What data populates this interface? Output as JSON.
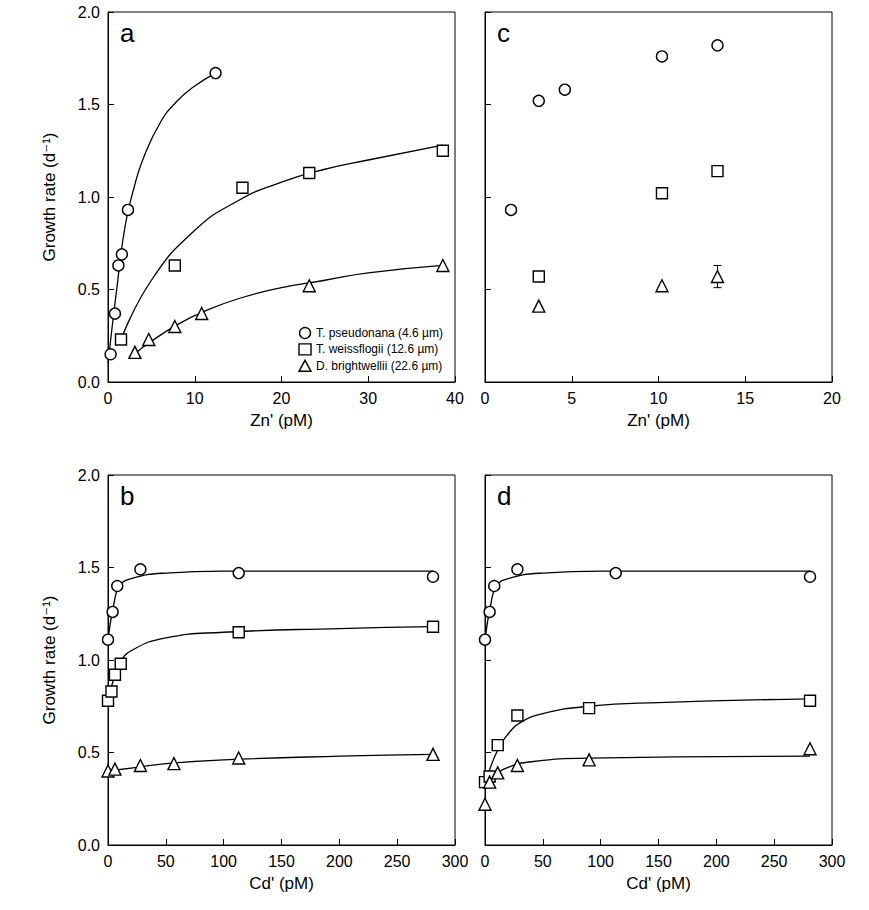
{
  "chart_data": [
    {
      "type": "scatter",
      "title": "a",
      "xlabel": "Zn' (pM)",
      "ylabel": "Growth rate (d⁻¹)",
      "xlim": [
        0,
        40
      ],
      "xticks": [
        0,
        10,
        20,
        30,
        40
      ],
      "ylim": [
        0,
        2
      ],
      "yticks": [
        {
          "value": 0,
          "label": "0.0"
        },
        0.5,
        {
          "value": 1,
          "label": "1.0"
        },
        1.5,
        {
          "value": 2,
          "label": "2.0"
        }
      ],
      "grid": false,
      "legend": "lower right",
      "tick_labels": true,
      "series": [
        {
          "name": "T. pseudonana (4.6 µm)",
          "marker": "circle",
          "color": "#000000",
          "x": [
            0.3,
            0.8,
            1.2,
            1.6,
            2.3,
            12.4
          ],
          "values": [
            0.15,
            0.37,
            0.63,
            0.69,
            0.93,
            1.67
          ],
          "fit": {
            "x": [
              0,
              1,
              2,
              3,
              4,
              6,
              8,
              10,
              12.4
            ],
            "values": [
              0.1,
              0.5,
              0.85,
              1.05,
              1.2,
              1.4,
              1.52,
              1.6,
              1.67
            ]
          }
        },
        {
          "name": "T. weissflogii (12.6 µm)",
          "marker": "square",
          "color": "#000000",
          "x": [
            1.5,
            7.7,
            15.5,
            23.2,
            38.6
          ],
          "values": [
            0.23,
            0.63,
            1.05,
            1.13,
            1.25
          ],
          "fit": {
            "x": [
              1.5,
              5,
              10,
              15,
              20,
              25,
              30,
              38.6
            ],
            "values": [
              0.23,
              0.55,
              0.82,
              0.98,
              1.08,
              1.15,
              1.2,
              1.28
            ]
          }
        },
        {
          "name": "D. brightwellii (22.6 µm)",
          "marker": "triangle",
          "color": "#000000",
          "x": [
            3.1,
            4.7,
            7.7,
            10.8,
            23.2,
            38.6
          ],
          "values": [
            0.16,
            0.23,
            0.3,
            0.37,
            0.52,
            0.63
          ],
          "fit": {
            "x": [
              3,
              5,
              8,
              11,
              15,
              20,
              25,
              30,
              38.6
            ],
            "values": [
              0.15,
              0.22,
              0.31,
              0.38,
              0.45,
              0.51,
              0.55,
              0.59,
              0.63
            ]
          }
        }
      ]
    },
    {
      "type": "scatter",
      "title": "c",
      "xlabel": "Zn' (pM)",
      "xlim": [
        0,
        20
      ],
      "xticks": [
        0,
        5,
        10,
        15,
        20
      ],
      "ylim": [
        0,
        2
      ],
      "yticks": [
        {
          "value": 0,
          "label": "0.0"
        },
        0.5,
        {
          "value": 1,
          "label": "1.0"
        },
        1.5,
        {
          "value": 2,
          "label": "2.0"
        }
      ],
      "grid": false,
      "tick_labels": "x",
      "series": [
        {
          "marker": "circle",
          "color": "#000000",
          "x": [
            1.5,
            3.1,
            4.6,
            10.2,
            13.4
          ],
          "values": [
            0.93,
            1.52,
            1.58,
            1.76,
            1.82
          ]
        },
        {
          "marker": "square",
          "color": "#000000",
          "x": [
            3.1,
            10.2,
            13.4
          ],
          "values": [
            0.57,
            1.02,
            1.14
          ]
        },
        {
          "marker": "triangle",
          "color": "#000000",
          "x": [
            3.1,
            10.2,
            13.4
          ],
          "values": [
            0.41,
            0.52,
            0.57
          ],
          "errors": [
            null,
            null,
            0.06
          ]
        }
      ]
    },
    {
      "type": "scatter",
      "title": "b",
      "xlabel": "Cd' (pM)",
      "ylabel": "Growth rate (d⁻¹)",
      "xlim": [
        0,
        300
      ],
      "xticks": [
        0,
        50,
        100,
        150,
        200,
        250,
        300
      ],
      "ylim": [
        0,
        2
      ],
      "yticks": [
        {
          "value": 0,
          "label": "0.0"
        },
        0.5,
        {
          "value": 1,
          "label": "1.0"
        },
        1.5,
        {
          "value": 2,
          "label": "2.0"
        }
      ],
      "grid": false,
      "tick_labels": true,
      "series": [
        {
          "marker": "circle",
          "color": "#000000",
          "x": [
            0,
            4,
            8,
            28,
            113,
            281
          ],
          "values": [
            1.11,
            1.26,
            1.4,
            1.49,
            1.47,
            1.45
          ],
          "fit": {
            "x": [
              0,
              5,
              10,
              20,
              50,
              100,
              200,
              281
            ],
            "values": [
              1.11,
              1.3,
              1.4,
              1.44,
              1.47,
              1.48,
              1.48,
              1.48
            ]
          }
        },
        {
          "marker": "square",
          "color": "#000000",
          "x": [
            0,
            3,
            6,
            11,
            113,
            281
          ],
          "values": [
            0.78,
            0.83,
            0.92,
            0.98,
            1.15,
            1.18
          ],
          "fit": {
            "x": [
              0,
              5,
              10,
              20,
              50,
              100,
              200,
              281
            ],
            "values": [
              0.78,
              0.9,
              0.98,
              1.05,
              1.12,
              1.15,
              1.17,
              1.18
            ]
          }
        },
        {
          "marker": "triangle",
          "color": "#000000",
          "x": [
            0,
            6,
            28,
            57,
            113,
            281
          ],
          "values": [
            0.4,
            0.41,
            0.43,
            0.44,
            0.47,
            0.49
          ],
          "fit": {
            "x": [
              0,
              25,
              50,
              100,
              200,
              281
            ],
            "values": [
              0.4,
              0.42,
              0.44,
              0.46,
              0.48,
              0.49
            ]
          }
        }
      ]
    },
    {
      "type": "scatter",
      "title": "d",
      "xlabel": "Cd' (pM)",
      "xlim": [
        0,
        300
      ],
      "xticks": [
        0,
        50,
        100,
        150,
        200,
        250,
        300
      ],
      "ylim": [
        0,
        2
      ],
      "yticks": [
        {
          "value": 0,
          "label": "0.0"
        },
        0.5,
        {
          "value": 1,
          "label": "1.0"
        },
        1.5,
        {
          "value": 2,
          "label": "2.0"
        }
      ],
      "grid": false,
      "tick_labels": "x",
      "series": [
        {
          "marker": "circle",
          "color": "#000000",
          "x": [
            0,
            4,
            8,
            28,
            113,
            281
          ],
          "values": [
            1.11,
            1.26,
            1.4,
            1.49,
            1.47,
            1.45
          ],
          "fit": {
            "x": [
              0,
              5,
              10,
              20,
              50,
              100,
              200,
              281
            ],
            "values": [
              1.11,
              1.3,
              1.4,
              1.44,
              1.47,
              1.48,
              1.48,
              1.48
            ]
          }
        },
        {
          "marker": "square",
          "color": "#000000",
          "x": [
            0,
            4,
            11,
            28,
            90,
            281
          ],
          "values": [
            0.34,
            0.37,
            0.54,
            0.7,
            0.74,
            0.78
          ],
          "fit": {
            "x": [
              0,
              10,
              20,
              30,
              50,
              90,
              150,
              281
            ],
            "values": [
              0.33,
              0.5,
              0.6,
              0.66,
              0.71,
              0.75,
              0.77,
              0.79
            ]
          }
        },
        {
          "marker": "triangle",
          "color": "#000000",
          "x": [
            0,
            4,
            11,
            28,
            90,
            281
          ],
          "values": [
            0.22,
            0.34,
            0.39,
            0.43,
            0.46,
            0.52
          ],
          "fit": {
            "x": [
              0,
              10,
              20,
              40,
              90,
              281
            ],
            "values": [
              0.3,
              0.38,
              0.42,
              0.45,
              0.47,
              0.48
            ]
          }
        }
      ]
    }
  ]
}
